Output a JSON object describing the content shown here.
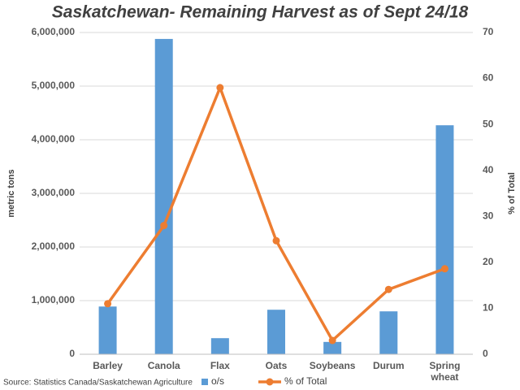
{
  "chart_data": {
    "type": "bar-line",
    "title": "Saskatchewan- Remaining Harvest as of Sept 24/18",
    "source": "Source: Statistics Canada/Saskatchewan Agriculture",
    "y_label": "metric tons",
    "y2_label": "% of Total",
    "categories": [
      "Barley",
      "Canola",
      "Flax",
      "Oats",
      "Soybeans",
      "Durum",
      "Spring wheat"
    ],
    "series": [
      {
        "name": "o/s",
        "type": "bar",
        "color": "#5b9bd5",
        "values": [
          890000,
          5880000,
          300000,
          830000,
          230000,
          800000,
          4270000
        ]
      },
      {
        "name": "% of Total",
        "type": "line",
        "axis": "y2",
        "color": "#ed7d31",
        "values": [
          11,
          28,
          58,
          24.7,
          3,
          14.1,
          18.6
        ]
      }
    ],
    "ylim": [
      0,
      6000000
    ],
    "yticks": [
      {
        "value": 0,
        "label": "0"
      },
      {
        "value": 1000000,
        "label": "1,000,000"
      },
      {
        "value": 2000000,
        "label": "2,000,000"
      },
      {
        "value": 3000000,
        "label": "3,000,000"
      },
      {
        "value": 4000000,
        "label": "4,000,000"
      },
      {
        "value": 5000000,
        "label": "5,000,000"
      },
      {
        "value": 6000000,
        "label": "6,000,000"
      }
    ],
    "y2lim": [
      0,
      70
    ],
    "y2ticks": [
      0,
      10,
      20,
      30,
      40,
      50,
      60,
      70
    ],
    "grid": true
  }
}
